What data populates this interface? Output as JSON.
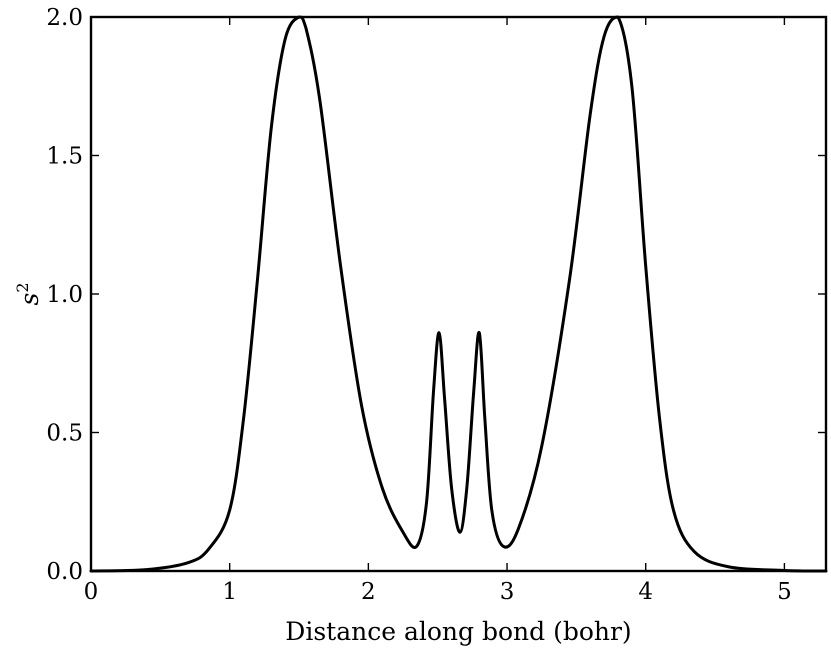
{
  "chart_data": {
    "type": "line",
    "title": "",
    "xlabel": "Distance along bond (bohr)",
    "ylabel": {
      "base": "s",
      "sup": "2"
    },
    "xlim": [
      0,
      5.3
    ],
    "ylim": [
      0,
      2.0
    ],
    "x_ticks": [
      0,
      1,
      2,
      3,
      4,
      5
    ],
    "x_tick_labels": [
      "0",
      "1",
      "2",
      "3",
      "4",
      "5"
    ],
    "y_ticks": [
      0.0,
      0.5,
      1.0,
      1.5,
      2.0
    ],
    "y_tick_labels": [
      "0.0",
      "0.5",
      "1.0",
      "1.5",
      "2.0"
    ],
    "grid": false,
    "series": [
      {
        "color": "#000000",
        "x": [
          0.0,
          0.4,
          0.7,
          0.85,
          1.0,
          1.1,
          1.2,
          1.3,
          1.4,
          1.5,
          1.55,
          1.65,
          1.8,
          1.95,
          2.1,
          2.25,
          2.35,
          2.42,
          2.47,
          2.51,
          2.55,
          2.6,
          2.66,
          2.71,
          2.76,
          2.8,
          2.84,
          2.89,
          2.97,
          3.08,
          3.25,
          3.45,
          3.6,
          3.7,
          3.8,
          3.9,
          4.0,
          4.1,
          4.2,
          4.35,
          4.6,
          5.0,
          5.3
        ],
        "y": [
          0.0,
          0.005,
          0.03,
          0.08,
          0.22,
          0.55,
          1.05,
          1.6,
          1.92,
          2.0,
          1.96,
          1.7,
          1.1,
          0.6,
          0.3,
          0.14,
          0.09,
          0.25,
          0.65,
          0.86,
          0.62,
          0.3,
          0.14,
          0.3,
          0.65,
          0.86,
          0.55,
          0.22,
          0.09,
          0.15,
          0.45,
          1.05,
          1.65,
          1.93,
          2.0,
          1.75,
          1.1,
          0.55,
          0.22,
          0.07,
          0.015,
          0.002,
          0.0
        ]
      }
    ]
  }
}
